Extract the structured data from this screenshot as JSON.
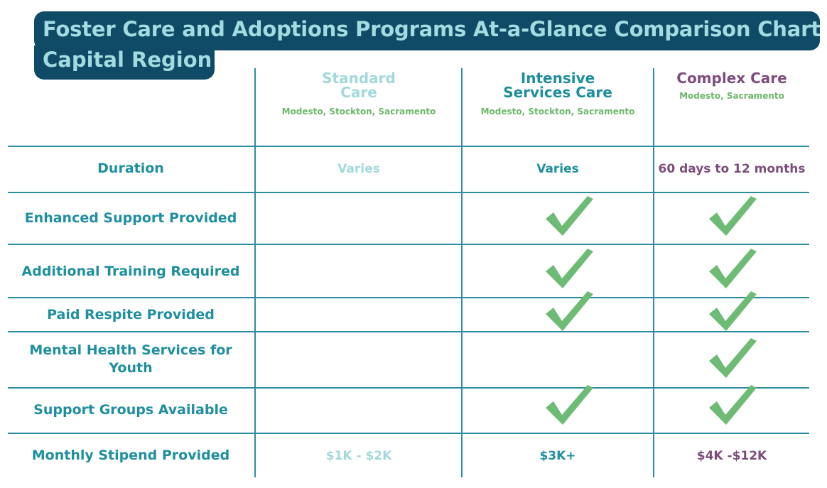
{
  "title": {
    "line1": "Foster Care and Adoptions Programs At-a-Glance Comparison Chart",
    "line2": "Capital Region"
  },
  "columns": [
    {
      "name_line1": "Standard",
      "name_line2": "Care",
      "locations": "Modesto, Stockton, Sacramento",
      "color": "#a3d9dc"
    },
    {
      "name_line1": "Intensive",
      "name_line2": "Services Care",
      "locations": "Modesto, Stockton, Sacramento",
      "color": "#1f8f9f"
    },
    {
      "name_line1": "Complex Care",
      "locations": "Modesto, Sacramento",
      "color": "#7c4d7c"
    }
  ],
  "rows": [
    {
      "label": "Duration",
      "standard": "Varies",
      "intensive": "Varies",
      "complex": "60 days to 12 months"
    },
    {
      "label": "Enhanced Support Provided",
      "standard_check": false,
      "intensive_check": true,
      "complex_check": true
    },
    {
      "label": "Additional Training Required",
      "standard_check": false,
      "intensive_check": true,
      "complex_check": true
    },
    {
      "label": "Paid Respite Provided",
      "standard_check": false,
      "intensive_check": true,
      "complex_check": true
    },
    {
      "label_line1": "Mental Health Services for",
      "label_line2": "Youth",
      "standard_check": false,
      "intensive_check": false,
      "complex_check": true
    },
    {
      "label": "Support Groups Available",
      "standard_check": false,
      "intensive_check": true,
      "complex_check": true
    },
    {
      "label": "Monthly Stipend Provided",
      "standard": "$1K - $2K",
      "intensive": "$3K+",
      "complex": "$4K -$12K"
    }
  ],
  "colors": {
    "banner": "#0f4a66",
    "title_text": "#a3dbe0",
    "grid": "#2b8ea0",
    "check": "#6dbb74",
    "location_text": "#6db86b"
  },
  "icons": {
    "check": "checkmark-icon"
  }
}
